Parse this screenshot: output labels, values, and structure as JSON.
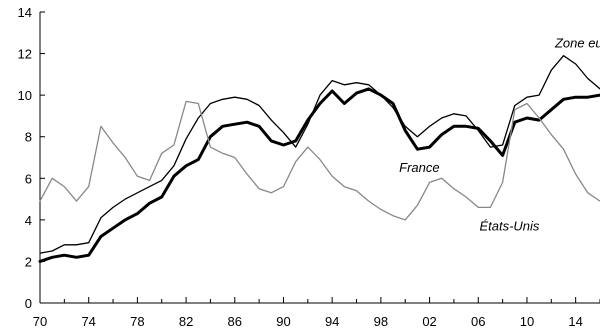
{
  "chart_data": {
    "type": "line",
    "title": "",
    "xlabel": "",
    "ylabel": "",
    "xlim": [
      1970,
      2016
    ],
    "ylim": [
      0,
      14
    ],
    "grid": false,
    "legend": "none",
    "x_ticks": [
      1970,
      1974,
      1978,
      1982,
      1986,
      1990,
      1994,
      1998,
      2002,
      2006,
      2010,
      2014
    ],
    "x_tick_labels": [
      "70",
      "74",
      "78",
      "82",
      "86",
      "90",
      "94",
      "98",
      "02",
      "06",
      "10",
      "14"
    ],
    "y_ticks": [
      0,
      2,
      4,
      6,
      8,
      10,
      12,
      14
    ],
    "y_tick_labels": [
      "0",
      "2",
      "4",
      "6",
      "8",
      "10",
      "12",
      "14"
    ],
    "x": [
      1970,
      1971,
      1972,
      1973,
      1974,
      1975,
      1976,
      1977,
      1978,
      1979,
      1980,
      1981,
      1982,
      1983,
      1984,
      1985,
      1986,
      1987,
      1988,
      1989,
      1990,
      1991,
      1992,
      1993,
      1994,
      1995,
      1996,
      1997,
      1998,
      1999,
      2000,
      2001,
      2002,
      2003,
      2004,
      2005,
      2006,
      2007,
      2008,
      2009,
      2010,
      2011,
      2012,
      2013,
      2014,
      2015,
      2016
    ],
    "series": [
      {
        "name": "Zone euro",
        "color": "#000000",
        "values": [
          2.4,
          2.5,
          2.8,
          2.8,
          2.9,
          4.1,
          4.6,
          5.0,
          5.3,
          5.6,
          5.9,
          6.6,
          7.9,
          8.9,
          9.6,
          9.8,
          9.9,
          9.8,
          9.5,
          8.8,
          8.2,
          7.5,
          8.6,
          10.0,
          10.7,
          10.5,
          10.6,
          10.5,
          10.0,
          9.4,
          8.5,
          8.0,
          8.5,
          8.9,
          9.1,
          9.0,
          8.3,
          7.5,
          7.6,
          9.5,
          9.9,
          10.0,
          11.2,
          11.9,
          11.5,
          10.8,
          10.3
        ]
      },
      {
        "name": "France",
        "color": "#000000",
        "values": [
          2.0,
          2.2,
          2.3,
          2.2,
          2.3,
          3.2,
          3.6,
          4.0,
          4.3,
          4.8,
          5.1,
          6.1,
          6.6,
          6.9,
          8.0,
          8.5,
          8.6,
          8.7,
          8.5,
          7.8,
          7.6,
          7.8,
          8.8,
          9.6,
          10.2,
          9.6,
          10.1,
          10.3,
          10.0,
          9.6,
          8.3,
          7.4,
          7.5,
          8.1,
          8.5,
          8.5,
          8.4,
          7.8,
          7.1,
          8.7,
          8.9,
          8.8,
          9.3,
          9.8,
          9.9,
          9.9,
          10.0
        ]
      },
      {
        "name": "États-Unis",
        "color": "#888888",
        "values": [
          4.9,
          6.0,
          5.6,
          4.9,
          5.6,
          8.5,
          7.7,
          7.0,
          6.1,
          5.9,
          7.2,
          7.6,
          9.7,
          9.6,
          7.5,
          7.2,
          7.0,
          6.2,
          5.5,
          5.3,
          5.6,
          6.8,
          7.5,
          6.9,
          6.1,
          5.6,
          5.4,
          4.9,
          4.5,
          4.2,
          4.0,
          4.7,
          5.8,
          6.0,
          5.5,
          5.1,
          4.6,
          4.6,
          5.8,
          9.3,
          9.6,
          8.9,
          8.1,
          7.4,
          6.2,
          5.3,
          4.9
        ]
      }
    ],
    "annotations": [
      {
        "text": "Zone euro",
        "x": 2012.3,
        "y": 12.3
      },
      {
        "text": "France",
        "x": 1999.5,
        "y": 6.3
      },
      {
        "text": "États-Unis",
        "x": 2006.1,
        "y": 3.5
      }
    ]
  }
}
